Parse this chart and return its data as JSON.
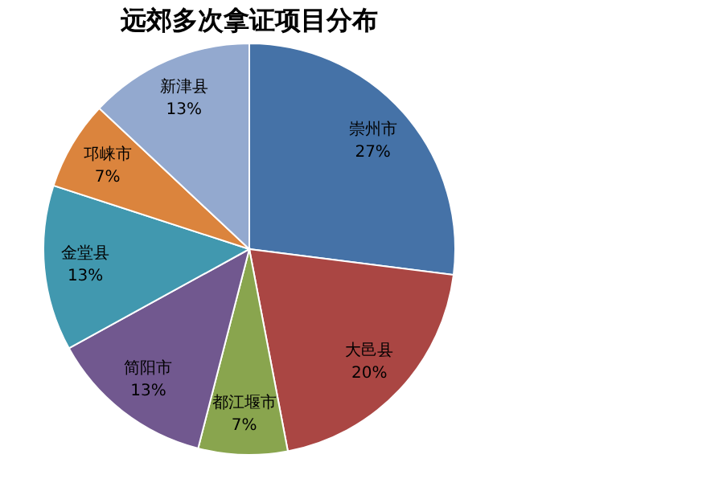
{
  "chart_data": {
    "type": "pie",
    "title": "远郊多次拿证项目分布",
    "categories": [
      "崇州市",
      "大邑县",
      "都江堰市",
      "简阳市",
      "金堂县",
      "邛崃市",
      "新津县"
    ],
    "values": [
      27,
      20,
      7,
      13,
      13,
      7,
      13
    ],
    "colors": [
      "#4572a7",
      "#aa4643",
      "#89a54e",
      "#71588f",
      "#4198af",
      "#db843d",
      "#93a9cf"
    ],
    "value_labels": [
      "27%",
      "20%",
      "7%",
      "13%",
      "13%",
      "7%",
      "13%"
    ]
  }
}
